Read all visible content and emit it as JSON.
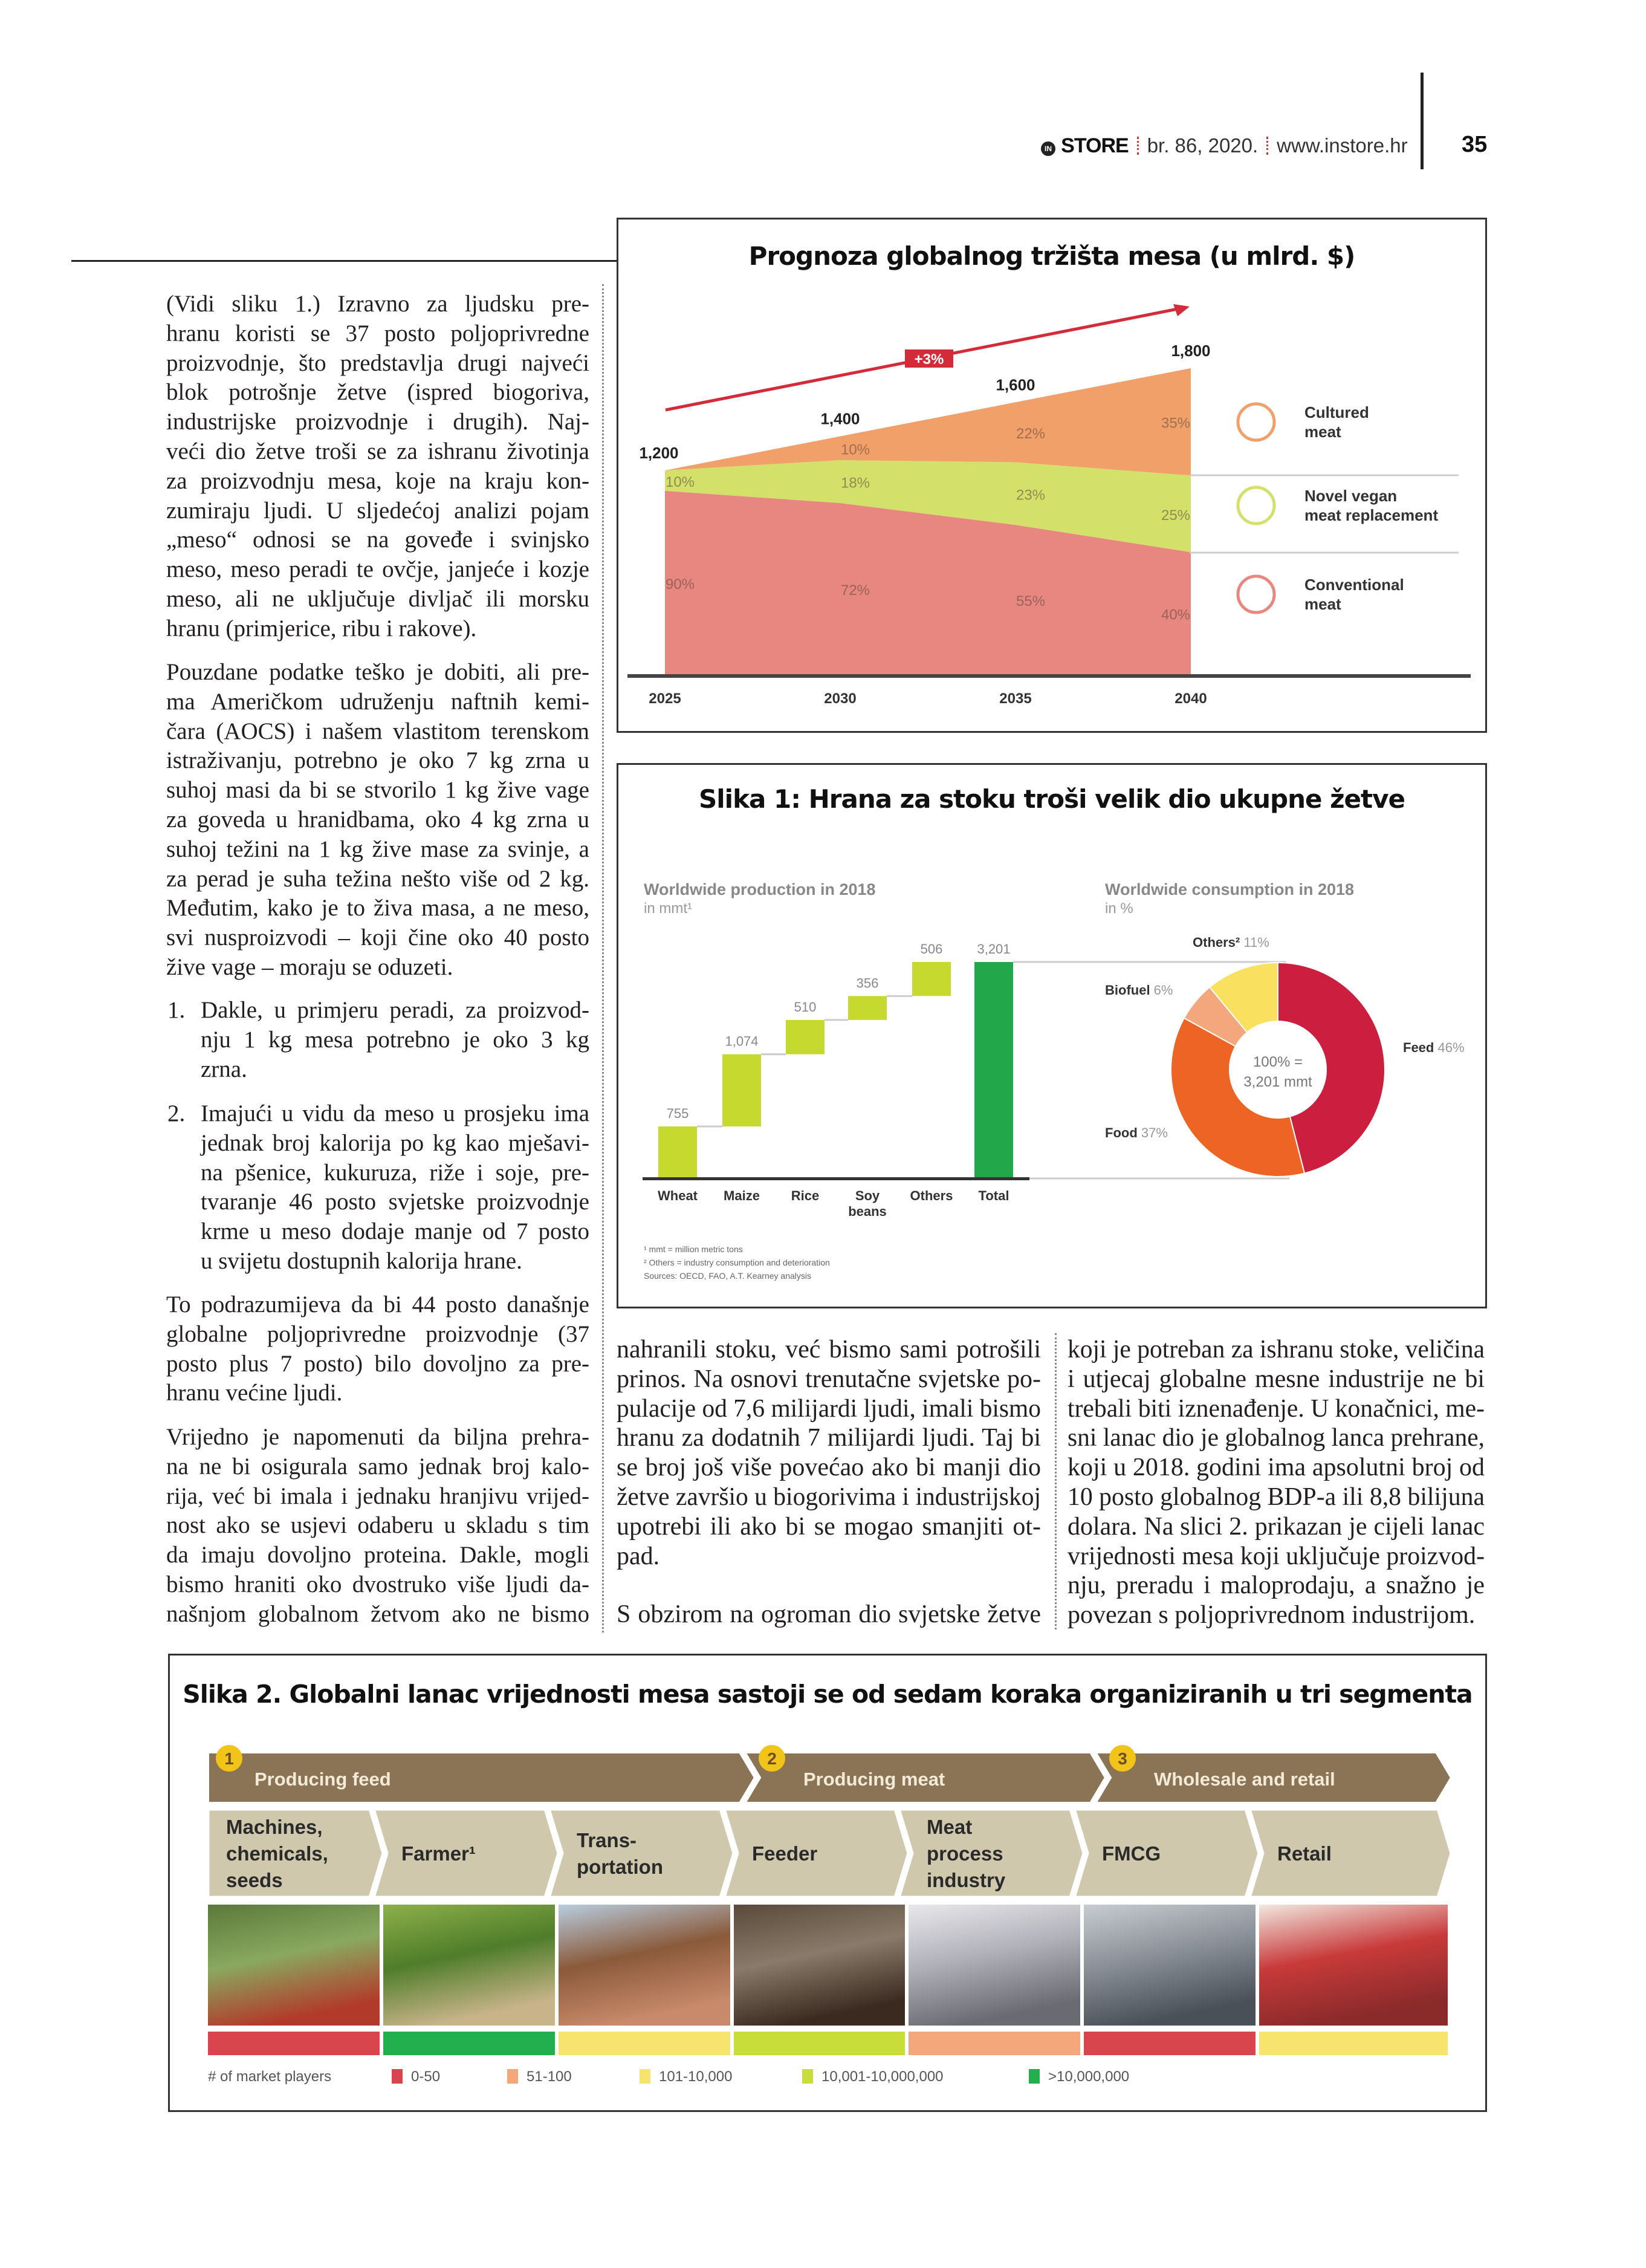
{
  "header": {
    "logo_mark": "IN",
    "brand": "STORE",
    "issue": "br. 86, 2020.",
    "website": "www.instore.hr",
    "page_number": "35",
    "accent_color": "#e03030"
  },
  "left_column": {
    "p1": [
      "(Vidi sliku 1.) Izravno za ljudsku pre-",
      "hranu koristi se 37 posto poljoprivredne",
      "proizvodnje, što predstavlja drugi najveći",
      "blok potrošnje žetve (ispred biogoriva,",
      "industrijske proizvodnje i drugih). Naj-",
      "veći dio žetve troši se za ishranu životinja",
      "za proizvodnju mesa, koje na kraju kon-",
      "zumiraju ljudi. U sljedećoj analizi pojam",
      "„meso“ odnosi se na goveđe i svinjsko",
      "meso, meso peradi te ovčje, janjeće i kozje",
      "meso, ali ne uključuje divljač ili morsku",
      "hranu (primjerice, ribu i rakove)."
    ],
    "p2": [
      "Pouzdane podatke teško je dobiti, ali pre-",
      "ma Američkom udruženju naftnih kemi-",
      "čara (AOCS) i našem vlastitom terenskom",
      "istraživanju, potrebno je oko 7 kg zrna u",
      "suhoj masi da bi se stvorilo 1 kg žive vage",
      "za goveda u hranidbama, oko 4 kg zrna u",
      "suhoj težini na 1 kg žive mase za svinje, a",
      "za perad je suha težina nešto više od 2 kg.",
      "Međutim, kako je to živa masa, a ne meso,",
      "svi nusproizvodi – koji čine oko 40 posto",
      "žive vage – moraju se oduzeti."
    ],
    "list": [
      {
        "number": "1.",
        "lines": [
          "Dakle, u primjeru peradi, za proizvod-",
          "nju 1 kg mesa potrebno je oko 3 kg",
          "zrna."
        ]
      },
      {
        "number": "2.",
        "lines": [
          "Imajući u vidu da meso u prosjeku ima",
          "jednak broj kalorija po kg kao mješavi-",
          "na pšenice, kukuruza, riže i soje, pre-",
          "tvaranje 46 posto svjetske proizvodnje",
          "krme u meso dodaje manje od 7 posto",
          "u svijetu dostupnih kalorija hrane."
        ]
      }
    ],
    "p3": [
      "To podrazumijeva da bi 44 posto današnje",
      "globalne poljoprivredne proizvodnje (37",
      "posto plus 7 posto) bilo dovoljno za pre-",
      "hranu većine ljudi."
    ],
    "p4": [
      "Vrijedno je napomenuti da biljna prehra-",
      "na ne bi osigurala samo jednak broj kalo-",
      "rija, već bi imala i jednaku hranjivu vrijed-",
      "nost ako se usjevi odaberu u skladu s tim",
      "da imaju dovoljno proteina. Dakle, mogli",
      "bismo hraniti oko dvostruko više ljudi da-",
      "našnjom globalnom žetvom ako ne bismo"
    ]
  },
  "middle_column": {
    "p1": [
      "nahranili stoku, već bismo sami potrošili",
      "prinos. Na osnovi trenutačne svjetske po-",
      "pulacije od 7,6 milijardi ljudi, imali bismo",
      "hranu za dodatnih 7 milijardi ljudi. Taj bi",
      "se broj još više povećao ako bi manji dio",
      "žetve završio u biogorivima i industrijskoj",
      "upotrebi ili ako bi se mogao smanjiti ot-",
      "pad."
    ],
    "p2": [
      "S obzirom na ogroman dio svjetske žetve"
    ]
  },
  "right_column": {
    "p1": [
      "koji je potreban za ishranu stoke, veličina",
      "i utjecaj globalne mesne industrije ne bi",
      "trebali biti iznenađenje. U konačnici, me-",
      "sni lanac dio je globalnog lanca prehrane,",
      "koji u 2018. godini ima apsolutni broj od",
      "10 posto globalnog BDP-a ili 8,8 bilijuna",
      "dolara. Na slici 2. prikazan je cijeli lanac",
      "vrijednosti mesa koji uključuje proizvod-",
      "nju, preradu i maloprodaju, a snažno je",
      "povezan s poljoprivrednom industrijom."
    ]
  },
  "chart_data": [
    {
      "type": "area",
      "title": "Prognoza globalnog tržišta mesa (u mlrd. $)",
      "categories": [
        "2025",
        "2030",
        "2035",
        "2040"
      ],
      "totals": [
        1200,
        1400,
        1600,
        1800
      ],
      "total_labels": [
        "1,200",
        "1,400",
        "1,600",
        "1,800"
      ],
      "growth_label": "+3%",
      "series": [
        {
          "name": "Conventional meat",
          "values": [
            90,
            72,
            55,
            40
          ],
          "labels": [
            "90%",
            "72%",
            "55%",
            "40%"
          ],
          "color": "#e8877f",
          "icon": "chicken-leg-icon"
        },
        {
          "name": "Novel vegan meat replacement",
          "values": [
            10,
            18,
            23,
            25
          ],
          "labels": [
            "10%",
            "18%",
            "23%",
            "25%"
          ],
          "color": "#d3e06a",
          "icon": "soybean-icon"
        },
        {
          "name": "Cultured meat",
          "values": [
            0,
            10,
            22,
            35
          ],
          "labels": [
            null,
            "10%",
            "22%",
            "35%"
          ],
          "color": "#f2a06a",
          "icon": "steak-icon"
        }
      ],
      "legend_placement": "right",
      "accent_color": "#d42b3a"
    },
    {
      "type": "bar",
      "title": "Slika 1: Hrana za stoku troši velik dio ukupne žetve",
      "subtitle": "Worldwide production in 2018",
      "unit": "in mmt¹",
      "categories": [
        "Wheat",
        "Maize",
        "Rice",
        "Soy beans",
        "Others",
        "Total"
      ],
      "values": [
        755,
        1074,
        510,
        356,
        506,
        3201
      ],
      "value_labels": [
        "755",
        "1,074",
        "510",
        "356",
        "506",
        "3,201"
      ],
      "waterfall": true,
      "colors": {
        "step": "#c6d92f",
        "total": "#22a84a"
      }
    },
    {
      "type": "pie",
      "donut": true,
      "subtitle": "Worldwide consumption in 2018",
      "unit": "in %",
      "center_label": [
        "100% =",
        "3,201 mmt"
      ],
      "slices": [
        {
          "name": "Feed",
          "value": 46,
          "label": "46%",
          "color": "#cc1f3f"
        },
        {
          "name": "Food",
          "value": 37,
          "label": "37%",
          "color": "#ee6424"
        },
        {
          "name": "Biofuel",
          "value": 6,
          "label": "6%",
          "color": "#f4a77c"
        },
        {
          "name": "Others²",
          "value": 11,
          "label": "11%",
          "color": "#f9e05e"
        }
      ],
      "footnotes": [
        "¹ mmt = million metric tons",
        "² Others = industry consumption and deterioration",
        "Sources: OECD, FAO, A.T. Kearney analysis"
      ]
    }
  ],
  "figure2": {
    "title": "Slika 2. Globalni lanac vrijednosti mesa sastoji se od sedam koraka organiziranih u tri segmenta",
    "segments": [
      {
        "number": "1",
        "label": "Producing feed"
      },
      {
        "number": "2",
        "label": "Producing meat"
      },
      {
        "number": "3",
        "label": "Wholesale and retail"
      }
    ],
    "steps": [
      {
        "label": [
          "Machines,",
          "chemicals,",
          "seeds"
        ],
        "players": "0-50"
      },
      {
        "label": [
          "Farmer¹"
        ],
        "players": ">10,000,000"
      },
      {
        "label": [
          "Trans-",
          "portation"
        ],
        "players": "101-10,000"
      },
      {
        "label": [
          "Feeder"
        ],
        "players": "10,001-10,000,000"
      },
      {
        "label": [
          "Meat",
          "process",
          "industry"
        ],
        "players": "51-100"
      },
      {
        "label": [
          "FMCG"
        ],
        "players": "0-50"
      },
      {
        "label": [
          "Retail"
        ],
        "players": "101-10,000"
      }
    ],
    "legend_title": "# of market players",
    "legend": [
      {
        "label": "0-50",
        "color": "#d9454d"
      },
      {
        "label": "51-100",
        "color": "#f4a77a"
      },
      {
        "label": "101-10,000",
        "color": "#f7e46e"
      },
      {
        "label": "10,001-10,000,000",
        "color": "#c8dc3a"
      },
      {
        "label": ">10,000,000",
        "color": "#22b04e"
      }
    ],
    "colors": {
      "band": "#8b7355",
      "step": "#cfc8ac",
      "badge": "#f2c318"
    }
  }
}
